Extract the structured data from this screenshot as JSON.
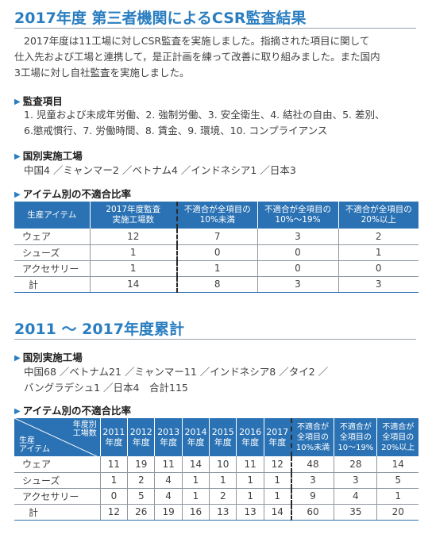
{
  "section1": {
    "title": "2017年度 第三者機関によるCSR監査結果",
    "intro_line1": "2017年度は11工場に対しCSR監査を実施しました。指摘された項目に関して",
    "intro_line2": "仕入先および工場と連携して，是正計画を練って改善に取り組みました。また国内",
    "intro_line3": "3工場に対し自社監査を実施しました。",
    "audit_items_heading": "監査項目",
    "audit_items_line1": "1. 児童および未成年労働、2. 強制労働、3. 安全衛生、4. 結社の自由、5. 差別、",
    "audit_items_line2": "6.懲戒慣行、7. 労働時間、8. 賃金、9. 環境、10. コンプライアンス",
    "factories_heading": "国別実施工場",
    "factories_text": "中国4 ／ミャンマー2 ／ベトナム4 ／インドネシア1 ／日本3",
    "ratio_heading": "アイテム別の不適合比率",
    "table": {
      "headers": [
        "生産アイテム",
        "2017年度監査\n実施工場数",
        "不適合が全項目の\n10%未満",
        "不適合が全項目の\n10%～19%",
        "不適合が全項目の\n20%以上"
      ],
      "rows": [
        [
          "ウェア",
          "12",
          "7",
          "3",
          "2"
        ],
        [
          "シューズ",
          "1",
          "0",
          "0",
          "1"
        ],
        [
          "アクセサリー",
          "1",
          "1",
          "0",
          "0"
        ],
        [
          "計",
          "14",
          "8",
          "3",
          "3"
        ]
      ]
    }
  },
  "section2": {
    "title": "2011 ～ 2017年度累計",
    "factories_heading": "国別実施工場",
    "factories_line1": "中国68 ／ベトナム21 ／ミャンマー11 ／インドネシア8 ／タイ2 ／",
    "factories_line2": "バングラデシュ1 ／日本4　合計115",
    "ratio_heading": "アイテム別の不適合比率",
    "table": {
      "corner_top": "年度別\n工場数",
      "corner_bottom": "生産\nアイテム",
      "years": [
        "2011\n年度",
        "2012\n年度",
        "2013\n年度",
        "2014\n年度",
        "2015\n年度",
        "2016\n年度",
        "2017\n年度"
      ],
      "ratio_headers": [
        "不適合が\n全項目の\n10%未満",
        "不適合が\n全項目の\n10～19%",
        "不適合が\n全項目の\n20%以上"
      ],
      "rows": [
        [
          "ウェア",
          "11",
          "19",
          "11",
          "14",
          "10",
          "11",
          "12",
          "48",
          "28",
          "14"
        ],
        [
          "シューズ",
          "1",
          "2",
          "4",
          "1",
          "1",
          "1",
          "1",
          "3",
          "3",
          "5"
        ],
        [
          "アクセサリー",
          "0",
          "5",
          "4",
          "1",
          "2",
          "1",
          "1",
          "9",
          "4",
          "1"
        ],
        [
          "計",
          "12",
          "26",
          "19",
          "16",
          "13",
          "13",
          "14",
          "60",
          "35",
          "20"
        ]
      ]
    }
  },
  "colors": {
    "accent": "#2a7ec0",
    "header_bg": "#2a72b4"
  }
}
